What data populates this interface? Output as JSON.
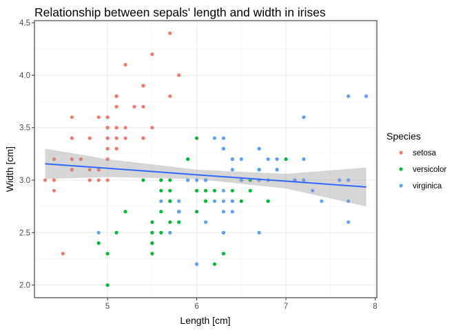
{
  "chart_data": {
    "type": "scatter",
    "title": "Relationship between sepals' length and width in irises",
    "xlabel": "Length [cm]",
    "ylabel": "Width [cm]",
    "xlim": [
      4.18,
      8.02
    ],
    "ylim": [
      1.88,
      4.52
    ],
    "x_ticks": [
      5,
      6,
      7,
      8
    ],
    "y_ticks": [
      2.0,
      2.5,
      3.0,
      3.5,
      4.0,
      4.5
    ],
    "x_tick_labels": [
      "5",
      "6",
      "7",
      "8"
    ],
    "y_tick_labels": [
      "2.0",
      "2.5",
      "3.0",
      "3.5",
      "4.0",
      "4.5"
    ],
    "grid": true,
    "legend": {
      "title": "Species",
      "position": "right",
      "entries": [
        "setosa",
        "versicolor",
        "virginica"
      ]
    },
    "series": [
      {
        "name": "setosa",
        "color": "#F8766D",
        "points": [
          [
            5.1,
            3.5
          ],
          [
            4.9,
            3.0
          ],
          [
            4.7,
            3.2
          ],
          [
            4.6,
            3.1
          ],
          [
            5.0,
            3.6
          ],
          [
            5.4,
            3.9
          ],
          [
            4.6,
            3.4
          ],
          [
            5.0,
            3.4
          ],
          [
            4.4,
            2.9
          ],
          [
            4.9,
            3.1
          ],
          [
            5.4,
            3.7
          ],
          [
            4.8,
            3.4
          ],
          [
            4.8,
            3.0
          ],
          [
            4.3,
            3.0
          ],
          [
            5.8,
            4.0
          ],
          [
            5.7,
            4.4
          ],
          [
            5.4,
            3.9
          ],
          [
            5.1,
            3.5
          ],
          [
            5.7,
            3.8
          ],
          [
            5.1,
            3.8
          ],
          [
            5.4,
            3.4
          ],
          [
            5.1,
            3.7
          ],
          [
            4.6,
            3.6
          ],
          [
            5.1,
            3.3
          ],
          [
            4.8,
            3.4
          ],
          [
            5.0,
            3.0
          ],
          [
            5.0,
            3.4
          ],
          [
            5.2,
            3.5
          ],
          [
            5.2,
            3.4
          ],
          [
            4.7,
            3.2
          ],
          [
            4.8,
            3.1
          ],
          [
            5.4,
            3.4
          ],
          [
            5.2,
            4.1
          ],
          [
            5.5,
            4.2
          ],
          [
            4.9,
            3.1
          ],
          [
            5.0,
            3.2
          ],
          [
            5.5,
            3.5
          ],
          [
            4.9,
            3.6
          ],
          [
            4.4,
            3.0
          ],
          [
            5.1,
            3.4
          ],
          [
            5.0,
            3.5
          ],
          [
            4.5,
            2.3
          ],
          [
            4.4,
            3.2
          ],
          [
            5.0,
            3.5
          ],
          [
            5.1,
            3.8
          ],
          [
            4.8,
            3.0
          ],
          [
            5.1,
            3.8
          ],
          [
            4.6,
            3.2
          ],
          [
            5.3,
            3.7
          ],
          [
            5.0,
            3.3
          ]
        ]
      },
      {
        "name": "versicolor",
        "color": "#00BA38",
        "points": [
          [
            7.0,
            3.2
          ],
          [
            6.4,
            3.2
          ],
          [
            6.9,
            3.1
          ],
          [
            5.5,
            2.3
          ],
          [
            6.5,
            2.8
          ],
          [
            5.7,
            2.8
          ],
          [
            6.3,
            3.3
          ],
          [
            4.9,
            2.4
          ],
          [
            6.6,
            2.9
          ],
          [
            5.2,
            2.7
          ],
          [
            5.0,
            2.0
          ],
          [
            5.9,
            3.0
          ],
          [
            6.0,
            2.2
          ],
          [
            6.1,
            2.9
          ],
          [
            5.6,
            2.9
          ],
          [
            6.7,
            3.1
          ],
          [
            5.6,
            3.0
          ],
          [
            5.8,
            2.7
          ],
          [
            6.2,
            2.2
          ],
          [
            5.6,
            2.5
          ],
          [
            5.9,
            3.2
          ],
          [
            6.1,
            2.8
          ],
          [
            6.3,
            2.5
          ],
          [
            6.1,
            2.8
          ],
          [
            6.4,
            2.9
          ],
          [
            6.6,
            3.0
          ],
          [
            6.8,
            2.8
          ],
          [
            6.7,
            3.0
          ],
          [
            6.0,
            2.9
          ],
          [
            5.7,
            2.6
          ],
          [
            5.5,
            2.4
          ],
          [
            5.5,
            2.4
          ],
          [
            5.8,
            2.7
          ],
          [
            6.0,
            2.7
          ],
          [
            5.4,
            3.0
          ],
          [
            6.0,
            3.4
          ],
          [
            6.7,
            3.1
          ],
          [
            6.3,
            2.3
          ],
          [
            5.6,
            3.0
          ],
          [
            5.5,
            2.5
          ],
          [
            5.5,
            2.6
          ],
          [
            6.1,
            3.0
          ],
          [
            5.8,
            2.6
          ],
          [
            5.0,
            2.3
          ],
          [
            5.6,
            2.7
          ],
          [
            5.7,
            3.0
          ],
          [
            5.7,
            2.9
          ],
          [
            6.2,
            2.9
          ],
          [
            5.1,
            2.5
          ],
          [
            5.7,
            2.8
          ]
        ]
      },
      {
        "name": "virginica",
        "color": "#619CFF",
        "points": [
          [
            6.3,
            3.3
          ],
          [
            5.8,
            2.7
          ],
          [
            7.1,
            3.0
          ],
          [
            6.3,
            2.9
          ],
          [
            6.5,
            3.0
          ],
          [
            7.6,
            3.0
          ],
          [
            4.9,
            2.5
          ],
          [
            7.3,
            2.9
          ],
          [
            6.7,
            2.5
          ],
          [
            7.2,
            3.6
          ],
          [
            6.5,
            3.2
          ],
          [
            6.4,
            2.7
          ],
          [
            6.8,
            3.0
          ],
          [
            5.7,
            2.5
          ],
          [
            5.8,
            2.8
          ],
          [
            6.4,
            3.2
          ],
          [
            6.5,
            3.0
          ],
          [
            7.7,
            3.8
          ],
          [
            7.7,
            2.6
          ],
          [
            6.0,
            2.2
          ],
          [
            6.9,
            3.2
          ],
          [
            5.6,
            2.8
          ],
          [
            7.7,
            2.8
          ],
          [
            6.3,
            2.7
          ],
          [
            6.7,
            3.3
          ],
          [
            7.2,
            3.2
          ],
          [
            6.2,
            2.8
          ],
          [
            6.1,
            3.0
          ],
          [
            6.4,
            2.8
          ],
          [
            7.2,
            3.0
          ],
          [
            7.4,
            2.8
          ],
          [
            7.9,
            3.8
          ],
          [
            6.4,
            2.8
          ],
          [
            6.3,
            2.8
          ],
          [
            6.1,
            2.6
          ],
          [
            7.7,
            3.0
          ],
          [
            6.3,
            3.4
          ],
          [
            6.4,
            3.1
          ],
          [
            6.0,
            3.0
          ],
          [
            6.9,
            3.1
          ],
          [
            6.7,
            3.1
          ],
          [
            6.9,
            3.1
          ],
          [
            5.8,
            2.7
          ],
          [
            6.8,
            3.2
          ],
          [
            6.7,
            3.3
          ],
          [
            6.7,
            3.0
          ],
          [
            6.3,
            2.5
          ],
          [
            6.5,
            3.0
          ],
          [
            6.2,
            3.4
          ],
          [
            5.9,
            3.0
          ]
        ]
      }
    ],
    "trend_line": {
      "method": "lm",
      "color": "#3366FF",
      "ribbon_color": "#999999",
      "points": [
        [
          4.3,
          3.156
        ],
        [
          5.0,
          3.113
        ],
        [
          6.0,
          3.051
        ],
        [
          7.0,
          2.99
        ],
        [
          7.9,
          2.935
        ]
      ],
      "ribbon_upper": [
        [
          4.3,
          3.3
        ],
        [
          5.0,
          3.2
        ],
        [
          6.0,
          3.1
        ],
        [
          7.0,
          3.06
        ],
        [
          7.9,
          3.12
        ]
      ],
      "ribbon_lower": [
        [
          4.3,
          3.01
        ],
        [
          5.0,
          3.03
        ],
        [
          6.0,
          3.01
        ],
        [
          7.0,
          2.92
        ],
        [
          7.9,
          2.75
        ]
      ]
    }
  }
}
